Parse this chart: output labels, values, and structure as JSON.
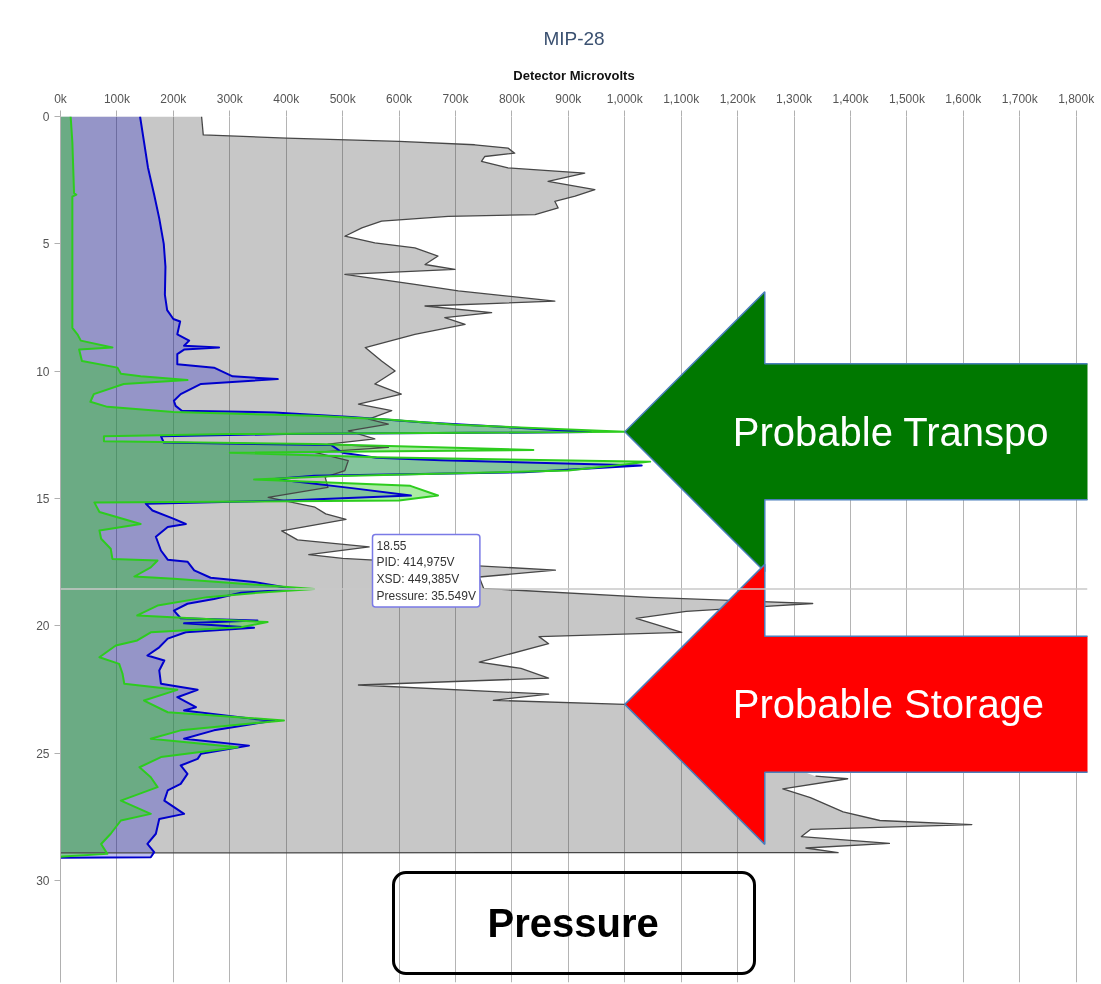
{
  "chart_data": {
    "type": "area",
    "orientation": "horizontal",
    "title": "MIP-28",
    "xlabel": "Detector Microvolts",
    "xlim": [
      0,
      1820000
    ],
    "xticks": [
      {
        "value": 0,
        "label": "0k"
      },
      {
        "value": 100000,
        "label": "100k"
      },
      {
        "value": 200000,
        "label": "200k"
      },
      {
        "value": 300000,
        "label": "300k"
      },
      {
        "value": 400000,
        "label": "400k"
      },
      {
        "value": 500000,
        "label": "500k"
      },
      {
        "value": 600000,
        "label": "600k"
      },
      {
        "value": 700000,
        "label": "700k"
      },
      {
        "value": 800000,
        "label": "800k"
      },
      {
        "value": 900000,
        "label": "900k"
      },
      {
        "value": 1000000,
        "label": "1,000k"
      },
      {
        "value": 1100000,
        "label": "1,100k"
      },
      {
        "value": 1200000,
        "label": "1,200k"
      },
      {
        "value": 1300000,
        "label": "1,300k"
      },
      {
        "value": 1400000,
        "label": "1,400k"
      },
      {
        "value": 1500000,
        "label": "1,500k"
      },
      {
        "value": 1600000,
        "label": "1,600k"
      },
      {
        "value": 1700000,
        "label": "1,700k"
      },
      {
        "value": 1800000,
        "label": "1,800k"
      }
    ],
    "ylim": [
      34,
      0
    ],
    "yticks": [
      0,
      5,
      10,
      15,
      20,
      25,
      30
    ],
    "grid": "x",
    "legend": "bottom",
    "series": [
      {
        "name": "Pressure",
        "color": "#474747",
        "x": [
          0,
          0.72,
          0.85,
          0.98,
          1.11,
          1.24,
          1.44,
          1.57,
          1.76,
          2.02,
          2.22,
          2.55,
          2.87,
          3.13,
          3.33,
          3.59,
          3.85,
          3.92,
          4.11,
          4.37,
          4.7,
          4.96,
          5.16,
          5.48,
          5.81,
          6.0,
          6.2,
          6.59,
          6.85,
          7.25,
          7.44,
          7.7,
          7.9,
          8.16,
          8.55,
          9.07,
          9.6,
          9.99,
          10.5,
          10.9,
          11.29,
          11.55,
          11.88,
          12.08,
          12.34,
          12.66,
          12.86,
          12.99,
          13.19,
          13.51,
          13.9,
          14.16,
          14.56,
          14.95,
          15.34,
          15.6,
          15.82,
          16.27,
          16.62,
          16.9,
          17.2,
          17.35,
          17.81,
          18.08,
          18.53,
          18.88,
          19.12,
          19.43,
          19.7,
          20.25,
          20.42,
          20.7,
          21.42,
          21.67,
          22.05,
          22.32,
          22.68,
          22.92,
          23.08,
          24.5,
          25.9,
          26.0,
          26.4,
          26.74,
          27.3,
          27.64,
          27.8,
          27.99,
          28.27,
          28.54,
          28.72,
          28.9,
          28.91
        ],
        "values": [
          250000,
          253000,
          400000,
          600000,
          734000,
          793000,
          805000,
          752000,
          746000,
          793000,
          929000,
          864000,
          947000,
          912000,
          876000,
          882000,
          841000,
          687000,
          569000,
          534000,
          504000,
          557000,
          628000,
          669000,
          646000,
          699000,
          504000,
          628000,
          705000,
          876000,
          646000,
          764000,
          681000,
          717000,
          628000,
          540000,
          569000,
          593000,
          557000,
          604000,
          528000,
          587000,
          546000,
          581000,
          510000,
          557000,
          474000,
          581000,
          451000,
          510000,
          504000,
          469000,
          474000,
          368000,
          451000,
          470000,
          506000,
          392000,
          420000,
          547000,
          440000,
          500000,
          877000,
          742000,
          750000,
          1044000,
          1333000,
          1109000,
          1020000,
          1101000,
          848000,
          865000,
          742000,
          816000,
          865000,
          528000,
          865000,
          767000,
          1000000,
          null,
          1338000,
          1395000,
          1280000,
          1329000,
          1387000,
          1452000,
          1615000,
          1329000,
          1313000,
          1469000,
          1321000,
          1378000,
          0
        ]
      },
      {
        "color": "#0000cc",
        "x": [
          0,
          1.0,
          2.0,
          3.07,
          4.0,
          5.0,
          5.9,
          7.0,
          7.6,
          7.95,
          8.05,
          8.55,
          8.8,
          9.0,
          9.07,
          9.15,
          9.33,
          9.73,
          9.86,
          10.2,
          10.31,
          10.5,
          10.9,
          11.16,
          11.36,
          11.55,
          11.62,
          11.8,
          12.0,
          12.39,
          12.47,
          12.55,
          12.8,
          12.9,
          13.2,
          13.4,
          13.5,
          13.7,
          13.97,
          14.1,
          14.23,
          14.6,
          14.88,
          15.08,
          15.2,
          15.47,
          15.8,
          16.0,
          16.12,
          16.5,
          17.04,
          17.4,
          17.48,
          17.82,
          18.11,
          18.28,
          18.55,
          18.7,
          18.94,
          19.13,
          19.4,
          19.7,
          19.79,
          19.9,
          20.07,
          20.25,
          20.5,
          20.84,
          21.16,
          21.36,
          21.75,
          22.27,
          22.51,
          22.8,
          23.19,
          23.32,
          23.65,
          23.71,
          24.1,
          24.43,
          24.7,
          25.02,
          25.22,
          25.48,
          25.81,
          26.2,
          26.46,
          26.86,
          27.38,
          27.58,
          28.16,
          28.56,
          28.88,
          29.08,
          29.1
        ],
        "values": [
          141000,
          148000,
          155000,
          166000,
          175000,
          183000,
          186000,
          185000,
          189000,
          200000,
          212000,
          207000,
          228000,
          219000,
          281000,
          219000,
          207000,
          207000,
          272000,
          305000,
          385000,
          249000,
          213000,
          201000,
          204000,
          215000,
          379000,
          515000,
          640000,
          940000,
          400000,
          178000,
          183000,
          480000,
          500000,
          560000,
          674000,
          1030000,
          821000,
          450000,
          379000,
          520000,
          621000,
          400000,
          151000,
          163000,
          201000,
          222000,
          190000,
          169000,
          178000,
          190000,
          225000,
          237000,
          266000,
          343000,
          414975,
          320000,
          272000,
          225000,
          201000,
          213000,
          349000,
          219000,
          343000,
          222000,
          190000,
          175000,
          154000,
          184000,
          175000,
          178000,
          243000,
          207000,
          240000,
          219000,
          343000,
          379000,
          272000,
          219000,
          334000,
          249000,
          243000,
          213000,
          225000,
          213000,
          190000,
          184000,
          219000,
          175000,
          169000,
          154000,
          166000,
          160000,
          0
        ]
      },
      {
        "color": "#2dcc1e",
        "x": [
          0,
          1.0,
          3.0,
          3.07,
          3.15,
          8.3,
          8.55,
          8.8,
          9.07,
          9.15,
          9.6,
          9.86,
          10.1,
          10.2,
          10.35,
          10.5,
          10.9,
          11.2,
          11.4,
          11.6,
          11.75,
          11.9,
          12.1,
          12.38,
          12.47,
          12.55,
          12.75,
          12.86,
          13.09,
          13.2,
          13.38,
          13.55,
          13.9,
          14.12,
          14.25,
          14.5,
          14.88,
          15.08,
          15.15,
          15.53,
          16.0,
          16.25,
          16.58,
          16.97,
          17.37,
          17.43,
          17.7,
          18.06,
          18.15,
          18.55,
          18.7,
          18.87,
          19.2,
          19.59,
          19.85,
          20.05,
          20.25,
          20.57,
          20.77,
          21.23,
          21.49,
          21.88,
          22.27,
          22.51,
          22.93,
          23.39,
          23.71,
          24.1,
          24.43,
          24.76,
          25.15,
          25.55,
          25.94,
          26.33,
          26.86,
          27.38,
          27.64,
          28.16,
          28.56,
          28.95,
          29.05,
          29.06
        ],
        "values": [
          18000,
          21000,
          24000,
          28000,
          21000,
          21000,
          30000,
          36000,
          92000,
          33000,
          38000,
          101000,
          107000,
          142000,
          225000,
          112000,
          59000,
          53000,
          83000,
          200000,
          450000,
          580000,
          700000,
          1000000,
          300000,
          77000,
          77000,
          450000,
          838000,
          300000,
          560000,
          1045000,
          900000,
          479000,
          343000,
          620000,
          669000,
          600000,
          60000,
          69000,
          142000,
          69000,
          72000,
          89000,
          92000,
          172000,
          160000,
          131000,
          201000,
          449385,
          349000,
          260000,
          172000,
          136000,
          367000,
          320000,
          160000,
          136000,
          98000,
          69000,
          104000,
          110000,
          113000,
          207000,
          148000,
          190000,
          396000,
          213000,
          160000,
          314000,
          178000,
          140000,
          160000,
          172000,
          107000,
          160000,
          107000,
          89000,
          72000,
          83000,
          4000,
          0
        ]
      }
    ],
    "ref_lines": [
      {
        "axis": "y",
        "value": 18.55,
        "label": "18.55\nPID: 414,975V\nXSD: 449,385V\nPressure: 35.549V",
        "color": "#c8c8c8"
      }
    ],
    "annotations": [
      {
        "text": "Probable Transpo",
        "x": 1000000,
        "y": 12.38
      },
      {
        "text": "Probable Storage",
        "x": 1000000,
        "y": 23.08
      }
    ]
  }
}
